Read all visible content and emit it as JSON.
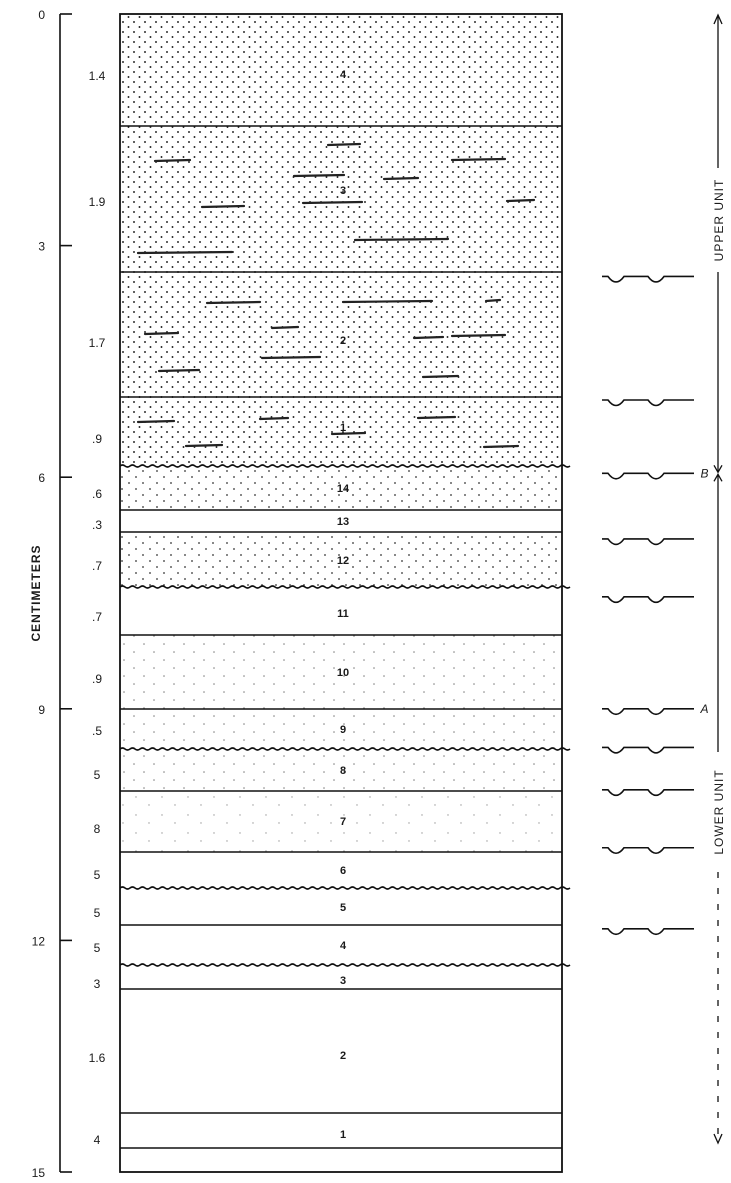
{
  "axis": {
    "title": "CENTIMETERS",
    "max_cm": 15,
    "ticks": [
      {
        "cm": 0,
        "label": "0"
      },
      {
        "cm": 3,
        "label": "3"
      },
      {
        "cm": 6,
        "label": "6"
      },
      {
        "cm": 9,
        "label": "9"
      },
      {
        "cm": 12,
        "label": "12"
      },
      {
        "cm": 15,
        "label": "15"
      }
    ]
  },
  "beds": [
    {
      "unit": "upper",
      "number": "4",
      "thickness": "1.4",
      "texture": "dense-dots"
    },
    {
      "unit": "upper",
      "number": "3",
      "thickness": "1.9",
      "texture": "dots-dashes"
    },
    {
      "unit": "upper",
      "number": "2",
      "thickness": "1.7",
      "texture": "dots-dashes"
    },
    {
      "unit": "upper",
      "number": "1",
      "thickness": ".9",
      "texture": "dots-dashes"
    },
    {
      "unit": "lower",
      "number": "14",
      "thickness": ".6",
      "texture": "dots"
    },
    {
      "unit": "lower",
      "number": "13",
      "thickness": ".3",
      "texture": "blank"
    },
    {
      "unit": "lower",
      "number": "12",
      "thickness": ".7",
      "texture": "dots"
    },
    {
      "unit": "lower",
      "number": "11",
      "thickness": ".7",
      "texture": "blank"
    },
    {
      "unit": "lower",
      "number": "10",
      "thickness": ".9",
      "texture": "sparse-dots"
    },
    {
      "unit": "lower",
      "number": "9",
      "thickness": ".5",
      "texture": "sparse-dots"
    },
    {
      "unit": "lower",
      "number": "8",
      "thickness": "5",
      "texture": "sparse-dots"
    },
    {
      "unit": "lower",
      "number": "7",
      "thickness": "8",
      "texture": "patchy-dots"
    },
    {
      "unit": "lower",
      "number": "6",
      "thickness": "5",
      "texture": "blank"
    },
    {
      "unit": "lower",
      "number": "5",
      "thickness": "5",
      "texture": "blank"
    },
    {
      "unit": "lower",
      "number": "4",
      "thickness": "5",
      "texture": "blank"
    },
    {
      "unit": "lower",
      "number": "3",
      "thickness": "3",
      "texture": "blank"
    },
    {
      "unit": "lower",
      "number": "2",
      "thickness": "1.6",
      "texture": "blank"
    },
    {
      "unit": "lower",
      "number": "1",
      "thickness": "4",
      "texture": "blank"
    }
  ],
  "erosion_symbols_cm": [
    3.4,
    5.0,
    5.95,
    6.8,
    7.55,
    9.0,
    9.5,
    10.05,
    10.8,
    11.85
  ],
  "markers": [
    {
      "label": "B",
      "cm": 5.95
    },
    {
      "label": "A",
      "cm": 9.0
    }
  ],
  "units": [
    {
      "label": "UPPER UNIT",
      "from_cm": 0,
      "to_cm": 5.95
    },
    {
      "label": "LOWER UNIT",
      "from_cm": 5.95,
      "to_cm": 15
    }
  ]
}
